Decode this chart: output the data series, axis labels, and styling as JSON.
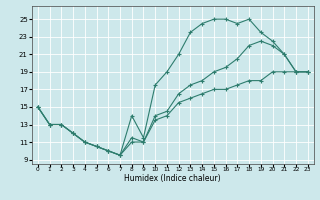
{
  "background_color": "#cde8eb",
  "grid_color": "#ffffff",
  "line_color": "#2e7d6e",
  "xlabel": "Humidex (Indice chaleur)",
  "xlim": [
    -0.5,
    23.5
  ],
  "ylim": [
    8.5,
    26.5
  ],
  "xticks": [
    0,
    1,
    2,
    3,
    4,
    5,
    6,
    7,
    8,
    9,
    10,
    11,
    12,
    13,
    14,
    15,
    16,
    17,
    18,
    19,
    20,
    21,
    22,
    23
  ],
  "yticks": [
    9,
    11,
    13,
    15,
    17,
    19,
    21,
    23,
    25
  ],
  "line1_x": [
    0,
    1,
    2,
    3,
    4,
    5,
    6,
    7,
    8,
    9,
    10,
    11,
    12,
    13,
    14,
    15,
    16,
    17,
    18,
    19,
    20,
    21,
    22,
    23
  ],
  "line1_y": [
    15,
    13,
    13,
    12,
    11,
    10.5,
    10,
    9.5,
    11,
    11,
    13.5,
    14,
    15.5,
    16,
    16.5,
    17,
    17,
    17.5,
    18,
    18,
    19,
    19,
    19,
    19
  ],
  "line2_x": [
    0,
    1,
    2,
    3,
    4,
    5,
    6,
    7,
    8,
    9,
    10,
    11,
    12,
    13,
    14,
    15,
    16,
    17,
    18,
    19,
    20,
    21,
    22,
    23
  ],
  "line2_y": [
    15,
    13,
    13,
    12,
    11,
    10.5,
    10,
    9.5,
    11.5,
    11,
    14,
    14.5,
    16.5,
    17.5,
    18,
    19,
    19.5,
    20.5,
    22,
    22.5,
    22,
    21,
    19,
    19
  ],
  "line3_x": [
    0,
    1,
    2,
    3,
    4,
    5,
    6,
    7,
    8,
    9,
    10,
    11,
    12,
    13,
    14,
    15,
    16,
    17,
    18,
    19,
    20,
    21,
    22,
    23
  ],
  "line3_y": [
    15,
    13,
    13,
    12,
    11,
    10.5,
    10,
    9.5,
    14,
    11.5,
    17.5,
    19,
    21,
    23.5,
    24.5,
    25,
    25,
    24.5,
    25,
    23.5,
    22.5,
    21,
    19,
    19
  ]
}
